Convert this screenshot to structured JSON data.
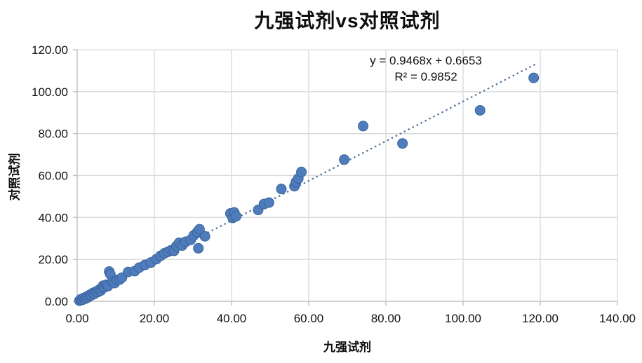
{
  "title": "九强试剂vs对照试剂",
  "chart_data": {
    "type": "scatter",
    "title": "九强试剂vs对照试剂",
    "xlabel": "九强试剂",
    "ylabel": "对照试剂",
    "xlim": [
      0,
      140
    ],
    "ylim": [
      0,
      120
    ],
    "x_tick_values": [
      0,
      20,
      40,
      60,
      80,
      100,
      120,
      140
    ],
    "x_tick_labels": [
      "0.00",
      "20.00",
      "40.00",
      "60.00",
      "80.00",
      "100.00",
      "120.00",
      "140.00"
    ],
    "y_tick_values": [
      0,
      20,
      40,
      60,
      80,
      100,
      120
    ],
    "y_tick_labels": [
      "0.00",
      "20.00",
      "40.00",
      "60.00",
      "80.00",
      "100.00",
      "120.00"
    ],
    "grid": true,
    "legend_position": "none",
    "colors": {
      "marker_fill": "#4f7cba",
      "marker_edge": "#3a639f",
      "trendline": "#53779f",
      "gridline": "#d9d9d9",
      "axis": "#bfbfbf",
      "text": "#111111"
    },
    "points": [
      [
        0.6,
        0.3
      ],
      [
        0.9,
        0.9
      ],
      [
        1.3,
        0.7
      ],
      [
        1.6,
        1.5
      ],
      [
        2.0,
        1.2
      ],
      [
        2.3,
        2.1
      ],
      [
        2.7,
        1.8
      ],
      [
        3.0,
        2.7
      ],
      [
        3.4,
        3.2
      ],
      [
        3.7,
        2.9
      ],
      [
        4.1,
        4.0
      ],
      [
        4.5,
        3.6
      ],
      [
        4.9,
        4.7
      ],
      [
        5.3,
        4.4
      ],
      [
        5.7,
        5.5
      ],
      [
        6.1,
        5.1
      ],
      [
        6.5,
        6.4
      ],
      [
        6.7,
        7.4
      ],
      [
        7.1,
        6.7
      ],
      [
        7.5,
        7.9
      ],
      [
        8.0,
        7.3
      ],
      [
        8.3,
        14.2
      ],
      [
        8.6,
        12.9
      ],
      [
        9.1,
        9.3
      ],
      [
        9.7,
        8.7
      ],
      [
        10.3,
        10.1
      ],
      [
        11.0,
        10.4
      ],
      [
        11.6,
        11.3
      ],
      [
        13.2,
        14.0
      ],
      [
        14.9,
        14.4
      ],
      [
        16.1,
        16.1
      ],
      [
        17.6,
        17.4
      ],
      [
        19.1,
        18.5
      ],
      [
        20.5,
        20.1
      ],
      [
        21.6,
        21.7
      ],
      [
        22.6,
        22.9
      ],
      [
        23.5,
        23.6
      ],
      [
        24.3,
        24.3
      ],
      [
        25.1,
        24.1
      ],
      [
        25.7,
        26.3
      ],
      [
        26.4,
        27.9
      ],
      [
        27.2,
        26.6
      ],
      [
        28.1,
        28.4
      ],
      [
        29.4,
        29.3
      ],
      [
        30.2,
        31.4
      ],
      [
        31.1,
        33.0
      ],
      [
        31.7,
        34.4
      ],
      [
        31.4,
        25.3
      ],
      [
        33.1,
        31.0
      ],
      [
        39.7,
        41.9
      ],
      [
        40.3,
        39.8
      ],
      [
        40.7,
        42.4
      ],
      [
        41.2,
        40.6
      ],
      [
        46.9,
        43.6
      ],
      [
        48.4,
        46.4
      ],
      [
        49.7,
        47.1
      ],
      [
        52.9,
        53.6
      ],
      [
        56.3,
        54.9
      ],
      [
        56.7,
        56.9
      ],
      [
        57.3,
        58.6
      ],
      [
        58.1,
        61.7
      ],
      [
        69.2,
        67.6
      ],
      [
        74.1,
        83.6
      ],
      [
        84.3,
        75.3
      ],
      [
        104.4,
        91.1
      ],
      [
        118.3,
        106.6
      ]
    ],
    "trendline": {
      "equation": "y = 0.9468x + 0.6653",
      "r2_label": "R² = 0.9852",
      "slope": 0.9468,
      "intercept": 0.6653,
      "x_range": [
        0.4,
        118.6
      ],
      "style": "dotted"
    }
  }
}
